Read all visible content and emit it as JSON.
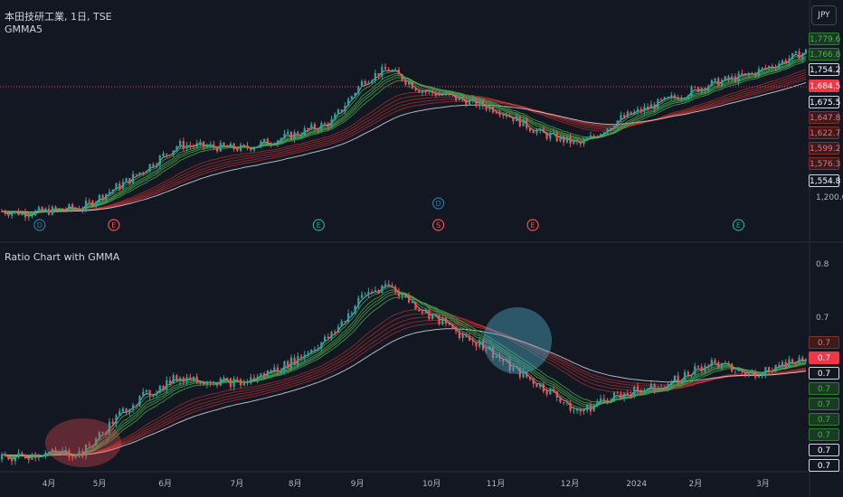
{
  "header": {
    "symbol_title": "本田技研工業, 1日, TSE",
    "indicator": "GMMA5",
    "currency": "JPY"
  },
  "lower_pane": {
    "title": "Ratio Chart with GMMA"
  },
  "colors": {
    "background": "#131722",
    "up": "#26a69a",
    "down": "#ef5350",
    "short_ema": "#4caf50",
    "long_ema": "#e53935",
    "white_line": "#d1d4dc",
    "current_price_line": "#f23645",
    "highlight_red": "#e84c53",
    "highlight_teal": "#4aa7c1"
  },
  "chart_data": [
    {
      "type": "candlestick",
      "title": "本田技研工業, 1日, TSE",
      "indicator": "GMMA5",
      "y_ticks": [
        "1,200.0"
      ],
      "price_badges": [
        {
          "label": "1,779.6",
          "style": "green"
        },
        {
          "label": "1,766.8",
          "style": "green"
        },
        {
          "label": "1,754.2",
          "style": "white"
        },
        {
          "label": "1,684.5",
          "style": "red-solid"
        },
        {
          "label": "1,675.5",
          "style": "white"
        },
        {
          "label": "1,647.8",
          "style": "red"
        },
        {
          "label": "1,622.7",
          "style": "red"
        },
        {
          "label": "1,599.2",
          "style": "red"
        },
        {
          "label": "1,576.3",
          "style": "red"
        },
        {
          "label": "1,554.8",
          "style": "white"
        }
      ],
      "current_price": 1684.5,
      "ylim": [
        1150,
        1830
      ],
      "event_markers": [
        {
          "label": "D",
          "color": "#2a77a6",
          "x_frac": 0.047
        },
        {
          "label": "E",
          "color": "#ef5350",
          "x_frac": 0.135
        },
        {
          "label": "E",
          "color": "#26a69a",
          "x_frac": 0.378
        },
        {
          "label": "D",
          "color": "#2a77a6",
          "x_frac": 0.52,
          "raised": true
        },
        {
          "label": "S",
          "color": "#ef5350",
          "x_frac": 0.52
        },
        {
          "label": "E",
          "color": "#ef5350",
          "x_frac": 0.632
        },
        {
          "label": "E",
          "color": "#26a69a",
          "x_frac": 0.876
        }
      ]
    },
    {
      "type": "candlestick",
      "title": "Ratio Chart with GMMA",
      "y_ticks": [
        "0.8",
        "0.7"
      ],
      "ylim": [
        0.555,
        0.825
      ],
      "badges": [
        {
          "label": "0.7",
          "style": "red"
        },
        {
          "label": "0.7",
          "style": "red-solid"
        },
        {
          "label": "0.7",
          "style": "white"
        },
        {
          "label": "0.7",
          "style": "green"
        },
        {
          "label": "0.7",
          "style": "green"
        },
        {
          "label": "0.7",
          "style": "green"
        },
        {
          "label": "0.7",
          "style": "green"
        },
        {
          "label": "0.7",
          "style": "white"
        },
        {
          "label": "0.7",
          "style": "white"
        },
        {
          "label": "0.7",
          "style": "red"
        }
      ]
    }
  ],
  "x_axis": {
    "labels": [
      "4月",
      "5月",
      "6月",
      "7月",
      "8月",
      "9月",
      "10月",
      "11月",
      "12月",
      "2024",
      "2月",
      "3月"
    ],
    "positions": [
      0.058,
      0.118,
      0.196,
      0.281,
      0.35,
      0.424,
      0.512,
      0.588,
      0.676,
      0.755,
      0.825,
      0.905
    ]
  }
}
